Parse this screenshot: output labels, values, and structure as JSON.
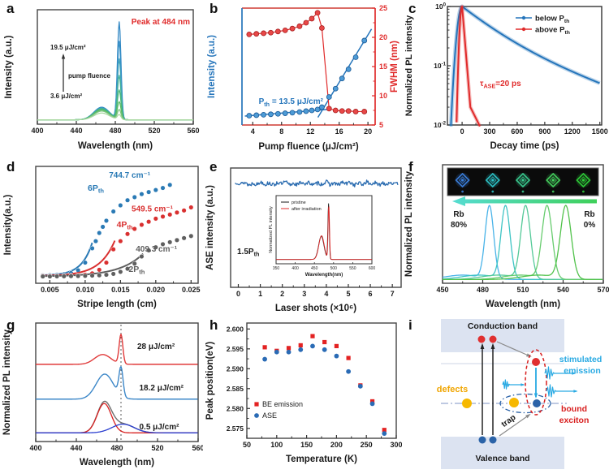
{
  "figure": {
    "background": "#ffffff"
  },
  "chart_data": [
    {
      "panel": "a",
      "type": "line",
      "xlabel": "Wavelength (nm)",
      "ylabel": "Intensity (a.u.)",
      "xlim": [
        400,
        560
      ],
      "xticks": [
        "400",
        "440",
        "480",
        "520",
        "560"
      ],
      "annotation": {
        "text": "Peak at 484 nm",
        "color": "#e02b2b"
      },
      "fluence_top": "19.5 μJ/cm²",
      "fluence_bottom": "3.6 μJ/cm²",
      "fluence_arrow_label": "pump fluence",
      "ase_peak_nm": 484,
      "ase_sigma_nm": 1.8,
      "be_peak_nm": 466,
      "be_sigma_nm": 8,
      "curves": [
        {
          "ase_amp": 0.05,
          "be_amp": 0.07,
          "color": "#a7d8a0"
        },
        {
          "ase_amp": 0.1,
          "be_amp": 0.09,
          "color": "#7cc47e"
        },
        {
          "ase_amp": 0.18,
          "be_amp": 0.1,
          "color": "#5bbb63"
        },
        {
          "ase_amp": 0.3,
          "be_amp": 0.11,
          "color": "#4bb876"
        },
        {
          "ase_amp": 0.45,
          "be_amp": 0.115,
          "color": "#45b296"
        },
        {
          "ase_amp": 0.62,
          "be_amp": 0.12,
          "color": "#3fa3b8"
        },
        {
          "ase_amp": 0.8,
          "be_amp": 0.125,
          "color": "#3590c7"
        },
        {
          "ase_amp": 1.0,
          "be_amp": 0.13,
          "color": "#2f86c3"
        }
      ]
    },
    {
      "panel": "b",
      "type": "scatter-line-dual",
      "xlabel": "Pump fluence (μJ/cm²)",
      "ylabel_left": {
        "text": "Intensity (a.u.)"
      },
      "ylabel_right": {
        "text": "FWHM (nm)"
      },
      "xlim": [
        2.5,
        21
      ],
      "xticks": [
        "4",
        "8",
        "12",
        "16",
        "20"
      ],
      "ylim_right": [
        5,
        25
      ],
      "yticks_right": [
        "5",
        "10",
        "15",
        "20",
        "25"
      ],
      "threshold_label": {
        "parts": [
          {
            "t": "P"
          },
          {
            "t": "th",
            "sub": true
          },
          {
            "t": " = 13.5 μJ/cm²"
          }
        ]
      },
      "x": [
        3.5,
        4.5,
        5.5,
        6.5,
        7.5,
        8.5,
        9.5,
        10.5,
        11.4,
        12.2,
        13.0,
        13.6,
        14.6,
        15.5,
        16.4,
        17.3,
        18.3,
        19.5
      ],
      "intensity": [
        0.048,
        0.053,
        0.058,
        0.063,
        0.068,
        0.074,
        0.08,
        0.088,
        0.097,
        0.105,
        0.115,
        0.14,
        0.25,
        0.34,
        0.45,
        0.55,
        0.68,
        0.86
      ],
      "fwhm": [
        20.5,
        20.6,
        20.7,
        20.8,
        21.0,
        21.2,
        21.5,
        21.9,
        22.5,
        23.2,
        24.2,
        21.6,
        7.8,
        7.5,
        7.4,
        7.4,
        7.3,
        7.3
      ],
      "colors": {
        "intensity": "#2575bb",
        "fwhm": "#e02b2b"
      }
    },
    {
      "panel": "c",
      "type": "line-log",
      "xlabel": "Decay time (ps)",
      "ylabel": "Normalized PL intensity",
      "xlim": [
        -160,
        1520
      ],
      "xticks": [
        "0",
        "300",
        "600",
        "900",
        "1200",
        "1500"
      ],
      "ylog_ticks": [
        {
          "m": "10",
          "e": "0",
          "v": 1
        },
        {
          "m": "10",
          "e": "-1",
          "v": 0.1
        },
        {
          "m": "10",
          "e": "-2",
          "v": 0.01
        }
      ],
      "legend": [
        {
          "parts": [
            {
              "t": "below P"
            },
            {
              "t": "th",
              "sub": true
            }
          ],
          "color": "#2575bb"
        },
        {
          "parts": [
            {
              "t": "above P"
            },
            {
              "t": "th",
              "sub": true
            }
          ],
          "color": "#e02b2b"
        }
      ],
      "tau_label": {
        "parts": [
          {
            "t": "τ"
          },
          {
            "t": "ASE",
            "sub": true
          },
          {
            "t": "=20 ps"
          }
        ]
      },
      "colors": {
        "below": "#2575bb",
        "above": "#e02b2b"
      },
      "blue_decay": {
        "rise_sigma_ps": 40,
        "a1": 0.7,
        "tau1_ps": 300,
        "a2": 0.3,
        "tau2_ps": 800
      },
      "red_decay": {
        "rise_sigma_ps": 20,
        "tau_ps": 23,
        "knee_t_ps": 90,
        "knee_level": 0.02,
        "tail_tau_ps": 140
      }
    },
    {
      "panel": "d",
      "type": "scatter-fit",
      "xlabel": "Stripe length (cm)",
      "ylabel": "Intensity(a.u.)",
      "xlim": [
        0.003,
        0.026
      ],
      "xticks": [
        "0.005",
        "0.010",
        "0.015",
        "0.020",
        "0.025"
      ],
      "series": [
        {
          "wavenumber": "744.7 cm⁻¹",
          "power_parts": [
            {
              "t": "6P"
            },
            {
              "t": "th",
              "sub": true
            }
          ],
          "power_anchor": "end",
          "color": "#2a7ab5",
          "label_wavenumber_at": [
            0.0163,
            1.0
          ],
          "label_power_at": [
            0.01266,
            0.873
          ],
          "x": [
            0.004,
            0.005,
            0.006,
            0.007,
            0.008,
            0.009,
            0.01,
            0.011,
            0.0115,
            0.012,
            0.0125,
            0.013,
            0.014,
            0.015,
            0.016,
            0.017,
            0.018,
            0.019,
            0.02,
            0.021,
            0.022
          ],
          "y": [
            0.045,
            0.047,
            0.05,
            0.056,
            0.068,
            0.095,
            0.17,
            0.31,
            0.38,
            0.46,
            0.52,
            0.58,
            0.67,
            0.73,
            0.78,
            0.81,
            0.84,
            0.86,
            0.88,
            0.9,
            0.93
          ],
          "fit": {
            "y0": 0.045,
            "A": 0.003,
            "x0": 0.004,
            "L": 0.0015,
            "xend": 0.0112
          }
        },
        {
          "wavenumber": "549.5 cm⁻¹",
          "power_parts": [
            {
              "t": "4P"
            },
            {
              "t": "th",
              "sub": true
            }
          ],
          "power_anchor": "middle",
          "color": "#d93030",
          "label_wavenumber_at": [
            0.0195,
            0.67
          ],
          "label_power_at": [
            0.0156,
            0.515
          ],
          "x": [
            0.004,
            0.005,
            0.006,
            0.007,
            0.008,
            0.009,
            0.01,
            0.011,
            0.012,
            0.013,
            0.014,
            0.015,
            0.016,
            0.017,
            0.018,
            0.019,
            0.02,
            0.021,
            0.022,
            0.023,
            0.024,
            0.025
          ],
          "y": [
            0.04,
            0.04,
            0.041,
            0.042,
            0.044,
            0.047,
            0.052,
            0.065,
            0.1,
            0.17,
            0.3,
            0.38,
            0.45,
            0.5,
            0.54,
            0.57,
            0.6,
            0.62,
            0.64,
            0.66,
            0.68,
            0.71
          ],
          "fit": {
            "y0": 0.04,
            "A": 0.003,
            "x0": 0.004,
            "L": 0.00215,
            "xend": 0.0143
          }
        },
        {
          "wavenumber": "409.3 cm⁻¹",
          "power_parts": [
            {
              "t": "2P"
            },
            {
              "t": "th",
              "sub": true
            }
          ],
          "power_anchor": "middle",
          "color": "#5f5f5f",
          "label_wavenumber_at": [
            0.0201,
            0.278
          ],
          "label_power_at": [
            0.0173,
            0.079
          ],
          "x": [
            0.004,
            0.005,
            0.006,
            0.007,
            0.008,
            0.009,
            0.01,
            0.011,
            0.012,
            0.013,
            0.014,
            0.015,
            0.016,
            0.017,
            0.018,
            0.019,
            0.02,
            0.021,
            0.022,
            0.023,
            0.024,
            0.025
          ],
          "y": [
            0.035,
            0.035,
            0.036,
            0.037,
            0.038,
            0.039,
            0.041,
            0.043,
            0.046,
            0.051,
            0.06,
            0.08,
            0.11,
            0.16,
            0.23,
            0.29,
            0.32,
            0.35,
            0.37,
            0.39,
            0.41,
            0.43
          ],
          "fit": {
            "y0": 0.035,
            "A": 0.003,
            "x0": 0.004,
            "L": 0.0033,
            "xend": 0.0182
          }
        }
      ]
    },
    {
      "panel": "e",
      "type": "line-noise",
      "xlabel": "Laser shots (×10⁶)",
      "ylabel": "ASE intensity (a.u.)",
      "xlim": [
        -0.35,
        7.4
      ],
      "xticks": [
        "0",
        "1",
        "2",
        "3",
        "4",
        "5",
        "6",
        "7"
      ],
      "level": 0.87,
      "noise": 0.017,
      "color": "#2b6cb0",
      "label_parts": [
        {
          "t": "1.5P"
        },
        {
          "t": "th",
          "sub": true
        }
      ],
      "inset": {
        "xlabel": "Wavelength(nm)",
        "ylabel": "Normalized PL intensity",
        "xlim": [
          350,
          600
        ],
        "xticks": [
          "350",
          "400",
          "450",
          "500",
          "550",
          "600"
        ],
        "legend": [
          {
            "t": "pristine",
            "color": "#1a1a1a"
          },
          {
            "t": "after irradiation",
            "color": "#e02b2b"
          }
        ],
        "be_peak": 468,
        "be_sigma": 7,
        "be_amp": 0.42,
        "ase_peak": 487,
        "ase_sigma": 1.8,
        "ase_amp": 1.0
      }
    },
    {
      "panel": "f",
      "type": "line-multi",
      "xlabel": "Wavelength (nm)",
      "ylabel": "Normalized PL intensity",
      "xlim": [
        450,
        570
      ],
      "xticks": [
        "450",
        "480",
        "510",
        "540",
        "570"
      ],
      "label_left": {
        "line1": "Rb",
        "line2": "80%"
      },
      "label_right": {
        "line1": "Rb",
        "line2": "0%"
      },
      "peaks": [
        {
          "center": 485,
          "sigma": 3.2,
          "color": "#49b3e8"
        },
        {
          "center": 497,
          "sigma": 3.4,
          "color": "#3ec4c4"
        },
        {
          "center": 512,
          "sigma": 3.6,
          "color": "#54c998"
        },
        {
          "center": 528,
          "sigma": 3.8,
          "color": "#67cc6e"
        },
        {
          "center": 542,
          "sigma": 4.0,
          "color": "#51c24b"
        }
      ],
      "photo_colors": [
        "#3b82e0",
        "#2ec7cb",
        "#3bd093",
        "#46d560",
        "#2fd13a"
      ],
      "arrow_colors": [
        "#56dcd2",
        "#3fd05a"
      ]
    },
    {
      "panel": "g",
      "type": "line-stacked",
      "xlabel": "Wavelength (nm)",
      "ylabel": "Normalized PL intensity",
      "xlim": [
        400,
        560
      ],
      "xticks": [
        "400",
        "440",
        "480",
        "520",
        "560"
      ],
      "dash_x": 484,
      "spectra": [
        {
          "label": "28 μJ/cm²",
          "color": "#e03a3a",
          "base": 0.68,
          "be": {
            "c": 466,
            "s": 8,
            "a": 0.09
          },
          "ase": {
            "c": 484,
            "s": 1.8,
            "a": 0.27
          }
        },
        {
          "label": "18.2 μJ/cm²",
          "color": "#3c87c8",
          "base": 0.36,
          "be": {
            "c": 468,
            "s": 8.5,
            "a": 0.23
          },
          "ase": {
            "c": 484,
            "s": 2,
            "a": 0.26
          }
        },
        {
          "label": "0.5 μJ/cm²",
          "color": "#6f6f6f",
          "base": 0.05,
          "components": [
            {
              "c": 467.5,
              "s": 7,
              "a": 0.27,
              "color": "#d82020"
            },
            {
              "c": 486,
              "s": 11,
              "a": 0.08,
              "color": "#2b3fd0"
            }
          ]
        }
      ]
    },
    {
      "panel": "h",
      "type": "scatter",
      "xlabel": "Temperature (K)",
      "ylabel": "Peak position(eV)",
      "xlim": [
        50,
        300
      ],
      "xticks": [
        "50",
        "100",
        "150",
        "200",
        "250",
        "300"
      ],
      "ylim": [
        2.5725,
        2.6015
      ],
      "yticks": [
        "2.575",
        "2.580",
        "2.585",
        "2.590",
        "2.595",
        "2.600"
      ],
      "temperatures": [
        80,
        100,
        120,
        140,
        160,
        180,
        200,
        220,
        240,
        260,
        280
      ],
      "series": [
        {
          "name": "BE emission",
          "marker": "square",
          "color": "#e32222",
          "values": [
            2.5954,
            2.5945,
            2.5952,
            2.5959,
            2.5982,
            2.5967,
            2.5957,
            2.5927,
            2.5858,
            2.5818,
            2.5746
          ]
        },
        {
          "name": "ASE",
          "marker": "circle",
          "color": "#2a6bb5",
          "values": [
            2.5924,
            2.5942,
            2.5942,
            2.5948,
            2.5957,
            2.5948,
            2.5932,
            2.5893,
            2.5856,
            2.5812,
            2.5737
          ]
        }
      ]
    },
    {
      "panel": "i",
      "type": "diagram",
      "labels": {
        "conduction": "Conduction band",
        "valence": "Valence band",
        "defects": {
          "text": "defects",
          "color": "#f0a500"
        },
        "trap": "trap",
        "bound": [
          "bound",
          "exciton"
        ],
        "stimulated": [
          "stimulated",
          "emission"
        ]
      },
      "colors": {
        "band": "#dce3f1",
        "electron": "#e03030",
        "hole": "#2b63a8",
        "defect": "#f6b800",
        "photon": "#29aae3"
      }
    }
  ]
}
